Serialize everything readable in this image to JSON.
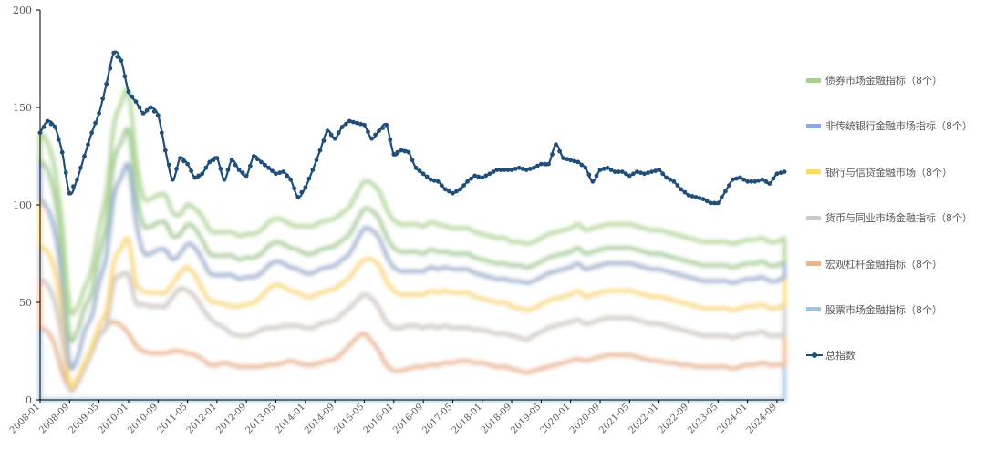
{
  "chart_data": {
    "type": "area",
    "stacked": true,
    "ylim": [
      0,
      200
    ],
    "yticks": [
      0,
      50,
      100,
      150,
      200
    ],
    "x_tick_labels": [
      "2008-01",
      "2008-09",
      "2009-05",
      "2010-01",
      "2010-09",
      "2011-05",
      "2012-01",
      "2012-09",
      "2013-05",
      "2014-01",
      "2014-09",
      "2015-05",
      "2016-01",
      "2016-09",
      "2017-05",
      "2018-01",
      "2018-09",
      "2019-05",
      "2020-01",
      "2020-09",
      "2021-05",
      "2022-01",
      "2022-09",
      "2023-05",
      "2024-01",
      "2024-09"
    ],
    "grid": false,
    "legend_position": "right",
    "x": [
      "2008-01",
      "2008-03",
      "2008-05",
      "2008-07",
      "2008-09",
      "2008-11",
      "2009-01",
      "2009-03",
      "2009-05",
      "2009-07",
      "2009-09",
      "2009-11",
      "2010-01",
      "2010-03",
      "2010-05",
      "2010-07",
      "2010-09",
      "2010-11",
      "2011-01",
      "2011-03",
      "2011-05",
      "2011-07",
      "2011-09",
      "2011-11",
      "2012-01",
      "2012-03",
      "2012-05",
      "2012-07",
      "2012-09",
      "2012-11",
      "2013-01",
      "2013-03",
      "2013-05",
      "2013-07",
      "2013-09",
      "2013-11",
      "2014-01",
      "2014-03",
      "2014-05",
      "2014-07",
      "2014-09",
      "2014-11",
      "2015-01",
      "2015-03",
      "2015-05",
      "2015-07",
      "2015-09",
      "2015-11",
      "2016-01",
      "2016-03",
      "2016-05",
      "2016-07",
      "2016-09",
      "2016-11",
      "2017-01",
      "2017-03",
      "2017-05",
      "2017-07",
      "2017-09",
      "2017-11",
      "2018-01",
      "2018-03",
      "2018-05",
      "2018-07",
      "2018-09",
      "2018-11",
      "2019-01",
      "2019-03",
      "2019-05",
      "2019-07",
      "2019-09",
      "2019-11",
      "2020-01",
      "2020-03",
      "2020-05",
      "2020-07",
      "2020-09",
      "2020-11",
      "2021-01",
      "2021-03",
      "2021-05",
      "2021-07",
      "2021-09",
      "2021-11",
      "2022-01",
      "2022-03",
      "2022-05",
      "2022-07",
      "2022-09",
      "2022-11",
      "2023-01",
      "2023-03",
      "2023-05",
      "2023-07",
      "2023-09",
      "2023-11",
      "2024-01",
      "2024-03",
      "2024-05",
      "2024-07",
      "2024-09",
      "2024-11"
    ],
    "series": [
      {
        "name": "股票市场金融指标（8个）",
        "color": "#9dc3e6",
        "values": [
          37,
          35,
          28,
          14,
          6,
          8,
          16,
          24,
          33,
          38,
          40,
          38,
          34,
          28,
          25,
          24,
          24,
          24,
          25,
          25,
          24,
          23,
          21,
          18,
          18,
          19,
          18,
          17,
          17,
          17,
          17,
          18,
          18,
          19,
          20,
          19,
          18,
          18,
          19,
          20,
          21,
          24,
          28,
          32,
          34,
          30,
          25,
          18,
          15,
          15,
          16,
          17,
          17,
          18,
          18,
          19,
          19,
          20,
          20,
          19,
          19,
          18,
          17,
          17,
          16,
          15,
          14,
          15,
          16,
          17,
          18,
          19,
          20,
          21,
          20,
          21,
          22,
          23,
          23,
          23,
          23,
          22,
          21,
          20,
          20,
          19,
          19,
          18,
          18,
          17,
          17,
          17,
          17,
          17,
          16,
          17,
          18,
          18,
          19,
          18,
          18,
          18
        ]
      },
      {
        "name": "宏观杠杆金融指标（8个）",
        "color": "#f4b183",
        "values": [
          25,
          24,
          22,
          17,
          0,
          0,
          0,
          0,
          0,
          0,
          20,
          26,
          30,
          22,
          24,
          24,
          24,
          24,
          28,
          32,
          32,
          30,
          26,
          24,
          21,
          18,
          16,
          16,
          16,
          17,
          19,
          19,
          19,
          19,
          18,
          19,
          19,
          19,
          20,
          20,
          20,
          20,
          19,
          19,
          20,
          22,
          22,
          22,
          22,
          22,
          22,
          21,
          20,
          20,
          19,
          19,
          18,
          17,
          17,
          17,
          17,
          17,
          17,
          17,
          17,
          17,
          17,
          18,
          19,
          20,
          20,
          20,
          20,
          20,
          19,
          19,
          19,
          19,
          19,
          19,
          19,
          19,
          19,
          19,
          19,
          19,
          18,
          18,
          17,
          17,
          16,
          16,
          16,
          16,
          16,
          16,
          16,
          16,
          16,
          15,
          15,
          15
        ]
      },
      {
        "name": "货币与同业市场金融指标（8个）",
        "color": "#c9c9c9",
        "values": [
          17,
          17,
          16,
          13,
          3,
          3,
          3,
          3,
          5,
          8,
          10,
          14,
          18,
          10,
          7,
          7,
          7,
          7,
          7,
          8,
          12,
          11,
          10,
          9,
          11,
          12,
          14,
          15,
          16,
          16,
          17,
          20,
          22,
          20,
          18,
          17,
          16,
          16,
          16,
          16,
          16,
          16,
          16,
          17,
          18,
          20,
          22,
          21,
          19,
          17,
          16,
          16,
          17,
          18,
          18,
          18,
          18,
          18,
          18,
          17,
          16,
          16,
          16,
          16,
          15,
          15,
          15,
          14,
          14,
          14,
          14,
          14,
          14,
          15,
          14,
          14,
          14,
          14,
          14,
          14,
          14,
          14,
          14,
          14,
          14,
          14,
          14,
          14,
          14,
          14,
          14,
          14,
          14,
          14,
          14,
          14,
          14,
          14,
          14,
          14,
          14,
          16
        ]
      },
      {
        "name": "银行与信贷金融市场（8个）",
        "color": "#ffd966",
        "values": [
          24,
          22,
          20,
          16,
          10,
          10,
          16,
          16,
          22,
          28,
          34,
          36,
          38,
          32,
          20,
          20,
          22,
          22,
          12,
          10,
          12,
          14,
          15,
          14,
          14,
          15,
          16,
          14,
          14,
          13,
          12,
          12,
          12,
          12,
          12,
          12,
          12,
          12,
          12,
          12,
          12,
          12,
          12,
          14,
          16,
          15,
          14,
          13,
          12,
          12,
          12,
          12,
          12,
          12,
          12,
          12,
          12,
          12,
          12,
          12,
          12,
          12,
          12,
          12,
          13,
          14,
          14,
          14,
          14,
          14,
          14,
          14,
          14,
          14,
          14,
          14,
          14,
          14,
          14,
          14,
          14,
          14,
          14,
          14,
          14,
          14,
          14,
          14,
          14,
          14,
          14,
          14,
          14,
          14,
          14,
          14,
          14,
          14,
          14,
          14,
          14,
          14
        ]
      },
      {
        "name": "非传统银行金融市场指标（8个）",
        "color": "#8faadc",
        "values": [
          20,
          20,
          18,
          16,
          14,
          14,
          12,
          12,
          14,
          16,
          18,
          18,
          18,
          16,
          14,
          14,
          14,
          14,
          12,
          10,
          10,
          10,
          10,
          10,
          10,
          10,
          10,
          10,
          10,
          10,
          10,
          10,
          10,
          10,
          10,
          10,
          10,
          10,
          10,
          10,
          10,
          10,
          10,
          10,
          10,
          10,
          10,
          10,
          10,
          10,
          10,
          10,
          9,
          9,
          9,
          8,
          8,
          8,
          8,
          8,
          8,
          8,
          8,
          8,
          8,
          8,
          8,
          8,
          8,
          8,
          8,
          8,
          8,
          8,
          8,
          8,
          8,
          8,
          8,
          8,
          8,
          8,
          8,
          8,
          8,
          8,
          8,
          8,
          8,
          8,
          8,
          8,
          8,
          8,
          8,
          8,
          8,
          8,
          8,
          8,
          8,
          8
        ]
      },
      {
        "name": "债券市场金融指标（8个）",
        "color": "#a9d18e",
        "values": [
          14,
          14,
          14,
          14,
          15,
          12,
          10,
          12,
          14,
          16,
          18,
          20,
          20,
          16,
          14,
          14,
          14,
          14,
          12,
          10,
          10,
          10,
          12,
          12,
          12,
          12,
          12,
          12,
          12,
          12,
          12,
          12,
          12,
          12,
          12,
          12,
          14,
          14,
          14,
          14,
          14,
          14,
          14,
          14,
          14,
          14,
          14,
          14,
          14,
          14,
          14,
          14,
          14,
          14,
          14,
          13,
          13,
          13,
          13,
          13,
          13,
          13,
          13,
          13,
          12,
          12,
          12,
          12,
          12,
          12,
          12,
          12,
          12,
          12,
          12,
          12,
          12,
          12,
          12,
          12,
          12,
          12,
          12,
          12,
          12,
          12,
          12,
          12,
          12,
          12,
          12,
          12,
          12,
          12,
          12,
          12,
          12,
          12,
          12,
          12,
          12,
          12
        ]
      }
    ],
    "total": {
      "name": "总指数",
      "color": "#1f4e79",
      "values": [
        137,
        143,
        140,
        127,
        106,
        113,
        125,
        137,
        147,
        162,
        178,
        174,
        158,
        153,
        147,
        150,
        146,
        128,
        113,
        124,
        121,
        114,
        116,
        122,
        124,
        113,
        123,
        118,
        115,
        125,
        122,
        119,
        116,
        117,
        113,
        104,
        109,
        118,
        128,
        138,
        134,
        140,
        143,
        142,
        141,
        134,
        138,
        141,
        126,
        128,
        127,
        119,
        116,
        113,
        112,
        108,
        106,
        108,
        112,
        115,
        114,
        116,
        118,
        118,
        118,
        119,
        118,
        119,
        121,
        121,
        131,
        124,
        123,
        122,
        119,
        112,
        118,
        119,
        117,
        117,
        115,
        117,
        116,
        117,
        118,
        114,
        112,
        108,
        105,
        104,
        103,
        101,
        101,
        107,
        113,
        114,
        112,
        112,
        113,
        111,
        116,
        117
      ]
    }
  }
}
